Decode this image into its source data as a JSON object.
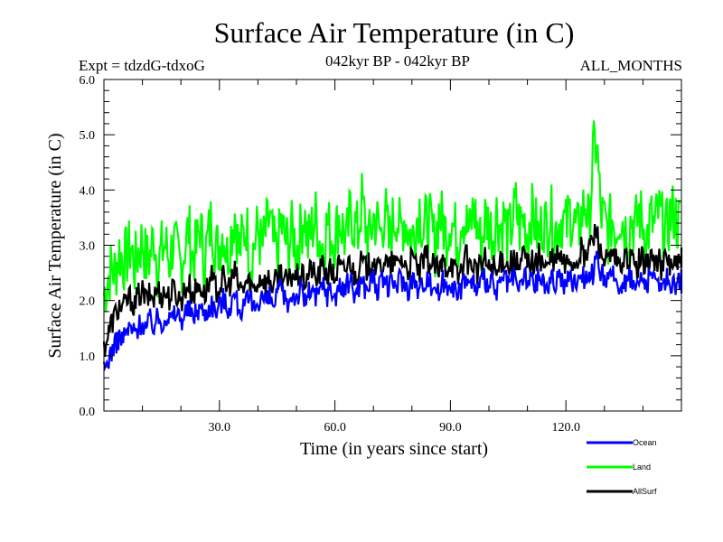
{
  "chart_data": {
    "type": "line",
    "title": "Surface Air Temperature (in C)",
    "subtitle_left": "Expt = tdzdG-tdxoG",
    "subtitle_center": "042kyr BP - 042kyr BP",
    "subtitle_right": "ALL_MONTHS",
    "xlabel": "Time (in years since start)",
    "ylabel": "Surface Air Temperature (in C)",
    "xlim": [
      0,
      150
    ],
    "ylim": [
      0,
      6
    ],
    "x_ticks": [
      30,
      60,
      90,
      120
    ],
    "x_tick_labels": [
      "30.0",
      "60.0",
      "90.0",
      "120.0"
    ],
    "y_ticks": [
      0,
      1,
      2,
      3,
      4,
      5,
      6
    ],
    "y_tick_labels": [
      "0.0",
      "1.0",
      "2.0",
      "3.0",
      "4.0",
      "5.0",
      "6.0"
    ],
    "grid": false,
    "legend_position": "bottom-right",
    "x_start": 0.5,
    "x_step": 1,
    "series": [
      {
        "name": "Ocean",
        "color": "#0000ff",
        "values": [
          0.7,
          0.9,
          1.1,
          1.2,
          1.35,
          1.3,
          1.45,
          1.5,
          1.4,
          1.55,
          1.6,
          1.5,
          1.65,
          1.55,
          1.7,
          1.6,
          1.75,
          1.65,
          1.7,
          1.8,
          1.65,
          1.75,
          1.85,
          1.7,
          1.8,
          1.9,
          1.75,
          1.85,
          1.95,
          1.8,
          1.9,
          2.05,
          1.85,
          1.95,
          2.1,
          1.9,
          1.8,
          1.95,
          2.0,
          1.85,
          2.0,
          2.1,
          1.95,
          2.05,
          1.9,
          2.1,
          2.2,
          2.0,
          1.95,
          2.15,
          2.05,
          2.2,
          2.0,
          2.1,
          2.25,
          2.0,
          2.15,
          2.3,
          2.1,
          2.2,
          2.05,
          2.3,
          2.15,
          2.25,
          2.4,
          2.1,
          2.25,
          2.35,
          2.2,
          2.3,
          2.45,
          2.15,
          2.3,
          2.4,
          2.2,
          2.35,
          2.25,
          2.45,
          2.3,
          2.2,
          2.4,
          2.3,
          2.15,
          2.35,
          2.45,
          2.25,
          2.3,
          2.1,
          2.35,
          2.25,
          2.4,
          2.2,
          2.05,
          2.3,
          2.45,
          2.25,
          2.35,
          2.15,
          2.3,
          2.4,
          2.2,
          2.35,
          2.1,
          2.3,
          2.45,
          2.25,
          2.4,
          2.3,
          2.2,
          2.5,
          2.3,
          2.4,
          2.25,
          2.45,
          2.35,
          2.2,
          2.4,
          2.3,
          2.5,
          2.35,
          2.25,
          2.45,
          2.3,
          2.4,
          2.55,
          2.35,
          2.6,
          2.45,
          2.7,
          2.5,
          2.4,
          2.3,
          2.45,
          2.35,
          2.25,
          2.4,
          2.3,
          2.45,
          2.2,
          2.35,
          2.4,
          2.25,
          2.5,
          2.3,
          2.4,
          2.2,
          2.45,
          2.3,
          2.35,
          2.25,
          2.4,
          2.3
        ]
      },
      {
        "name": "Land",
        "color": "#00ff00",
        "values": [
          2.1,
          2.4,
          2.6,
          2.5,
          2.9,
          2.7,
          2.8,
          3.0,
          2.6,
          2.9,
          3.1,
          2.7,
          2.8,
          3.2,
          2.6,
          2.9,
          3.0,
          2.7,
          3.1,
          2.8,
          2.6,
          3.0,
          3.3,
          2.8,
          2.9,
          3.4,
          2.7,
          3.1,
          3.5,
          2.9,
          3.0,
          3.3,
          2.8,
          3.2,
          3.6,
          2.9,
          3.1,
          3.4,
          2.7,
          3.0,
          3.3,
          2.9,
          3.2,
          3.5,
          3.0,
          2.8,
          3.4,
          3.1,
          3.0,
          3.3,
          2.9,
          3.2,
          3.6,
          3.0,
          3.3,
          3.5,
          3.1,
          3.0,
          3.4,
          3.2,
          3.1,
          3.5,
          3.3,
          3.0,
          3.6,
          3.4,
          3.2,
          3.8,
          3.3,
          3.1,
          3.5,
          3.4,
          3.2,
          3.7,
          3.0,
          3.4,
          3.6,
          3.2,
          3.5,
          3.3,
          3.1,
          3.4,
          3.7,
          3.2,
          3.5,
          3.3,
          3.0,
          3.6,
          3.4,
          3.2,
          3.5,
          3.3,
          3.1,
          3.6,
          3.4,
          3.2,
          3.7,
          3.3,
          3.0,
          3.5,
          3.4,
          3.2,
          3.6,
          3.3,
          3.5,
          3.1,
          3.4,
          3.7,
          3.3,
          3.5,
          3.2,
          3.6,
          3.4,
          3.1,
          3.5,
          3.3,
          3.6,
          3.2,
          3.4,
          3.5,
          3.3,
          3.6,
          3.4,
          3.2,
          3.5,
          3.8,
          3.3,
          4.6,
          4.9,
          3.6,
          3.4,
          3.2,
          3.5,
          3.3,
          3.6,
          3.4,
          3.2,
          3.5,
          3.3,
          3.6,
          3.4,
          3.1,
          3.5,
          3.3,
          3.6,
          3.4,
          3.2,
          3.5,
          3.6,
          3.4
        ]
      },
      {
        "name": "AllSurf",
        "color": "#000000",
        "values": [
          1.15,
          1.35,
          1.6,
          1.75,
          1.9,
          1.85,
          2.0,
          2.05,
          1.9,
          2.1,
          2.15,
          2.0,
          2.1,
          2.05,
          2.2,
          2.1,
          2.15,
          2.05,
          2.2,
          2.1,
          2.0,
          2.2,
          2.3,
          2.1,
          2.2,
          2.3,
          2.1,
          2.25,
          2.4,
          2.2,
          2.25,
          2.4,
          2.2,
          2.35,
          2.5,
          2.25,
          2.2,
          2.35,
          2.3,
          2.2,
          2.35,
          2.45,
          2.3,
          2.4,
          2.25,
          2.4,
          2.55,
          2.35,
          2.3,
          2.5,
          2.4,
          2.5,
          2.35,
          2.45,
          2.6,
          2.35,
          2.5,
          2.65,
          2.45,
          2.55,
          2.4,
          2.65,
          2.5,
          2.6,
          2.75,
          2.45,
          2.6,
          2.7,
          2.55,
          2.65,
          2.8,
          2.5,
          2.65,
          2.75,
          2.55,
          2.7,
          2.6,
          2.8,
          2.65,
          2.55,
          2.75,
          2.65,
          2.5,
          2.7,
          2.8,
          2.6,
          2.65,
          2.45,
          2.7,
          2.6,
          2.75,
          2.55,
          2.4,
          2.65,
          2.8,
          2.6,
          2.7,
          2.5,
          2.65,
          2.75,
          2.55,
          2.7,
          2.45,
          2.65,
          2.8,
          2.6,
          2.75,
          2.65,
          2.55,
          2.85,
          2.65,
          2.75,
          2.6,
          2.8,
          2.7,
          2.55,
          2.75,
          2.65,
          2.85,
          2.7,
          2.6,
          2.8,
          2.65,
          2.75,
          2.9,
          2.7,
          3.0,
          3.1,
          3.3,
          2.85,
          2.75,
          2.65,
          2.8,
          2.7,
          2.6,
          2.75,
          2.65,
          2.8,
          2.55,
          2.7,
          2.75,
          2.6,
          2.85,
          2.65,
          2.75,
          2.55,
          2.8,
          2.65,
          2.7,
          2.6,
          2.75,
          2.7
        ]
      }
    ]
  }
}
